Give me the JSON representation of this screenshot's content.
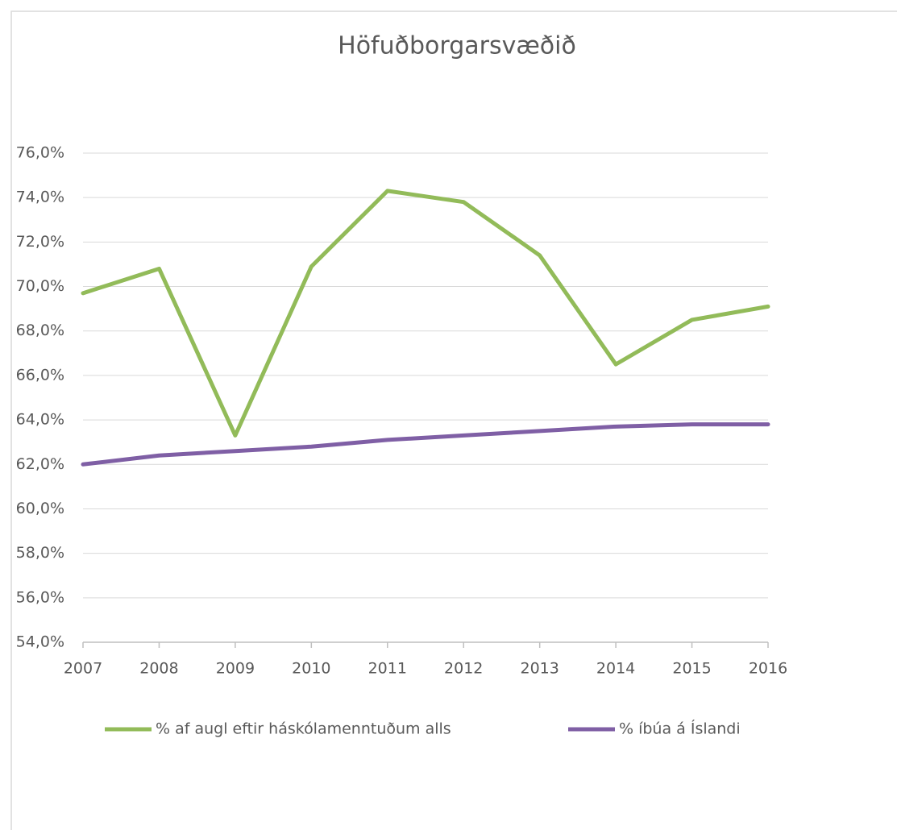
{
  "chart_data": {
    "type": "line",
    "title": "Höfuðborgarsvæðið",
    "categories": [
      "2007",
      "2008",
      "2009",
      "2010",
      "2011",
      "2012",
      "2013",
      "2014",
      "2015",
      "2016"
    ],
    "series": [
      {
        "name": "% af augl eftir háskólamenntuðum alls",
        "color": "#92bb59",
        "values": [
          69.7,
          70.8,
          63.3,
          70.9,
          74.3,
          73.8,
          71.4,
          66.5,
          68.5,
          69.1
        ]
      },
      {
        "name": "% íbúa á Íslandi",
        "color": "#7f5fa5",
        "values": [
          62.0,
          62.4,
          62.6,
          62.8,
          63.1,
          63.3,
          63.5,
          63.7,
          63.8,
          63.8
        ]
      }
    ],
    "ylim": [
      54,
      76
    ],
    "yticks": [
      {
        "value": 54,
        "label": "54,0%"
      },
      {
        "value": 56,
        "label": "56,0%"
      },
      {
        "value": 58,
        "label": "58,0%"
      },
      {
        "value": 60,
        "label": "60,0%"
      },
      {
        "value": 62,
        "label": "62,0%"
      },
      {
        "value": 64,
        "label": "64,0%"
      },
      {
        "value": 66,
        "label": "66,0%"
      },
      {
        "value": 68,
        "label": "68,0%"
      },
      {
        "value": 70,
        "label": "70,0%"
      },
      {
        "value": 72,
        "label": "72,0%"
      },
      {
        "value": 74,
        "label": "74,0%"
      },
      {
        "value": 76,
        "label": "76,0%"
      }
    ],
    "grid": true,
    "legend": "bottom"
  }
}
